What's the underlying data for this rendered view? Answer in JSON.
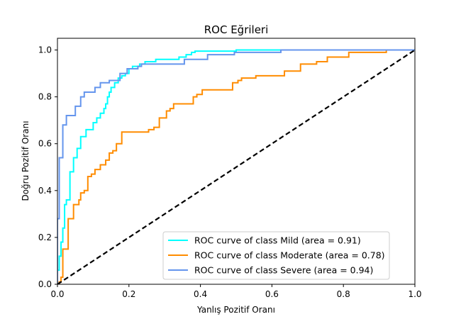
{
  "chart_data": {
    "type": "line",
    "title": "ROC Eğrileri",
    "xlabel": "Yanlış Pozitif Oranı",
    "ylabel": "Doğru Pozitif Oranı",
    "xlim": [
      0.0,
      1.0
    ],
    "ylim": [
      0.0,
      1.05
    ],
    "xticks": [
      "0.0",
      "0.2",
      "0.4",
      "0.6",
      "0.8",
      "1.0"
    ],
    "yticks": [
      "0.0",
      "0.2",
      "0.4",
      "0.6",
      "0.8",
      "1.0"
    ],
    "grid": false,
    "legend_position": "bottom-right",
    "series": [
      {
        "name": "ROC curve of class Mild (area = 0.91)",
        "color": "#00ffff",
        "x": [
          0.0,
          0.0,
          0.005,
          0.005,
          0.01,
          0.01,
          0.015,
          0.015,
          0.02,
          0.02,
          0.025,
          0.025,
          0.035,
          0.035,
          0.045,
          0.045,
          0.055,
          0.055,
          0.065,
          0.065,
          0.08,
          0.08,
          0.1,
          0.1,
          0.11,
          0.11,
          0.12,
          0.12,
          0.13,
          0.13,
          0.135,
          0.135,
          0.14,
          0.14,
          0.145,
          0.145,
          0.15,
          0.15,
          0.16,
          0.16,
          0.17,
          0.17,
          0.18,
          0.18,
          0.19,
          0.19,
          0.2,
          0.2,
          0.21,
          0.21,
          0.23,
          0.23,
          0.245,
          0.245,
          0.275,
          0.275,
          0.34,
          0.34,
          0.36,
          0.36,
          0.375,
          0.375,
          0.385,
          0.385,
          0.5,
          0.5,
          0.62,
          0.62,
          1.0
        ],
        "y": [
          0.0,
          0.06,
          0.06,
          0.12,
          0.12,
          0.18,
          0.18,
          0.24,
          0.24,
          0.34,
          0.34,
          0.36,
          0.36,
          0.48,
          0.48,
          0.54,
          0.54,
          0.58,
          0.58,
          0.63,
          0.63,
          0.66,
          0.66,
          0.69,
          0.69,
          0.71,
          0.71,
          0.73,
          0.73,
          0.75,
          0.75,
          0.77,
          0.77,
          0.8,
          0.8,
          0.82,
          0.82,
          0.84,
          0.84,
          0.86,
          0.86,
          0.88,
          0.88,
          0.89,
          0.89,
          0.9,
          0.9,
          0.92,
          0.92,
          0.93,
          0.93,
          0.94,
          0.94,
          0.95,
          0.95,
          0.96,
          0.96,
          0.97,
          0.97,
          0.98,
          0.98,
          0.99,
          0.99,
          0.995,
          0.995,
          1.0,
          1.0,
          1.0,
          1.0
        ]
      },
      {
        "name": "ROC curve of class Moderate (area = 0.78)",
        "color": "#ff8c00",
        "x": [
          0.0,
          0.0,
          0.005,
          0.005,
          0.01,
          0.01,
          0.015,
          0.015,
          0.03,
          0.03,
          0.045,
          0.045,
          0.06,
          0.06,
          0.065,
          0.065,
          0.075,
          0.075,
          0.085,
          0.085,
          0.095,
          0.095,
          0.105,
          0.105,
          0.12,
          0.12,
          0.135,
          0.135,
          0.145,
          0.145,
          0.155,
          0.155,
          0.165,
          0.165,
          0.18,
          0.18,
          0.255,
          0.255,
          0.27,
          0.27,
          0.285,
          0.285,
          0.305,
          0.305,
          0.315,
          0.315,
          0.325,
          0.325,
          0.38,
          0.38,
          0.39,
          0.39,
          0.405,
          0.405,
          0.49,
          0.49,
          0.505,
          0.505,
          0.515,
          0.515,
          0.555,
          0.555,
          0.635,
          0.635,
          0.68,
          0.68,
          0.725,
          0.725,
          0.755,
          0.755,
          0.815,
          0.815,
          0.92,
          0.92,
          1.0
        ],
        "y": [
          0.0,
          0.0,
          0.0,
          0.01,
          0.01,
          0.03,
          0.03,
          0.15,
          0.15,
          0.28,
          0.28,
          0.34,
          0.34,
          0.36,
          0.36,
          0.39,
          0.39,
          0.4,
          0.4,
          0.46,
          0.46,
          0.47,
          0.47,
          0.49,
          0.49,
          0.51,
          0.51,
          0.53,
          0.53,
          0.56,
          0.56,
          0.57,
          0.57,
          0.6,
          0.6,
          0.65,
          0.65,
          0.66,
          0.66,
          0.67,
          0.67,
          0.71,
          0.71,
          0.74,
          0.74,
          0.75,
          0.75,
          0.77,
          0.77,
          0.8,
          0.8,
          0.81,
          0.81,
          0.83,
          0.83,
          0.86,
          0.86,
          0.87,
          0.87,
          0.88,
          0.88,
          0.89,
          0.89,
          0.91,
          0.91,
          0.94,
          0.94,
          0.95,
          0.95,
          0.97,
          0.97,
          0.99,
          0.99,
          1.0,
          1.0
        ]
      },
      {
        "name": "ROC curve of class Severe (area = 0.94)",
        "color": "#6495ed",
        "x": [
          0.0,
          0.0,
          0.005,
          0.005,
          0.015,
          0.015,
          0.025,
          0.025,
          0.05,
          0.05,
          0.065,
          0.065,
          0.075,
          0.075,
          0.105,
          0.105,
          0.12,
          0.12,
          0.145,
          0.145,
          0.175,
          0.175,
          0.195,
          0.195,
          0.225,
          0.225,
          0.235,
          0.235,
          0.355,
          0.355,
          0.42,
          0.42,
          0.495,
          0.495,
          0.625,
          0.625,
          1.0
        ],
        "y": [
          0.0,
          0.28,
          0.28,
          0.54,
          0.54,
          0.68,
          0.68,
          0.72,
          0.72,
          0.76,
          0.76,
          0.8,
          0.8,
          0.82,
          0.82,
          0.84,
          0.84,
          0.86,
          0.86,
          0.87,
          0.87,
          0.9,
          0.9,
          0.92,
          0.92,
          0.93,
          0.93,
          0.94,
          0.94,
          0.96,
          0.96,
          0.98,
          0.98,
          0.99,
          0.99,
          1.0,
          1.0
        ]
      }
    ],
    "reference_line": {
      "x": [
        0.0,
        1.0
      ],
      "y": [
        0.0,
        1.0
      ],
      "color": "#000000",
      "style": "dashed"
    }
  }
}
